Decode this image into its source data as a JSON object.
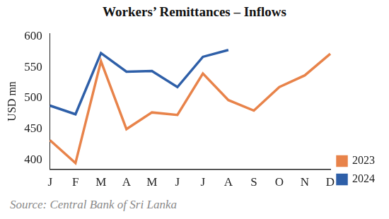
{
  "chart_data": {
    "type": "line",
    "title": "Workers’ Remittances – Inflows",
    "y_label": "USD mn",
    "caption": "Source: Central Bank of Sri Lanka",
    "categories": [
      "J",
      "F",
      "M",
      "A",
      "M",
      "J",
      "J",
      "A",
      "S",
      "O",
      "N",
      "D"
    ],
    "series": [
      {
        "name": "2023",
        "color": "#e8834a",
        "values": [
          432,
          395,
          560,
          450,
          477,
          473,
          540,
          497,
          480,
          518,
          537,
          572
        ]
      },
      {
        "name": "2024",
        "color": "#2e5fa8",
        "values": [
          488,
          474,
          573,
          543,
          544,
          518,
          567,
          578,
          null,
          null,
          null,
          null
        ]
      }
    ],
    "ylim": [
      385,
      605
    ],
    "yticks": [
      400,
      450,
      500,
      550,
      600
    ],
    "grid": false,
    "legend": "lower right"
  }
}
